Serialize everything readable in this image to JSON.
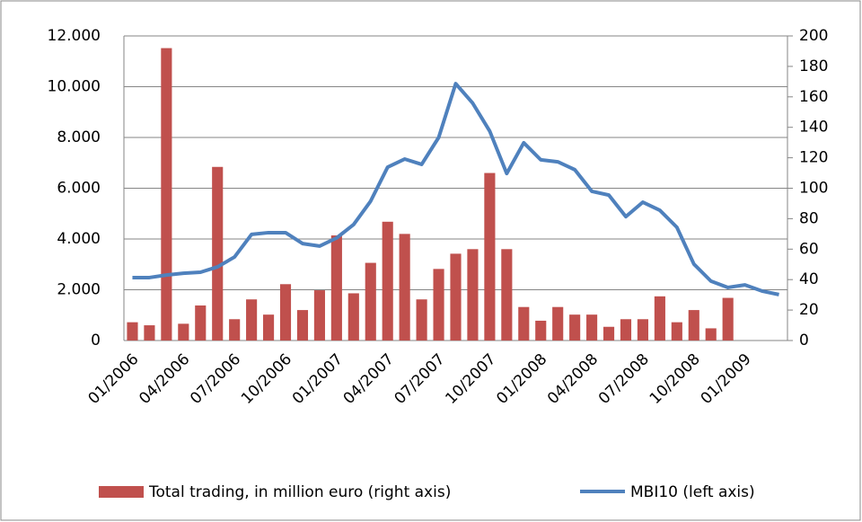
{
  "chart_data": {
    "type": "bar-line",
    "categories": [
      "01/2006",
      null,
      null,
      "04/2006",
      null,
      null,
      "07/2006",
      null,
      null,
      "10/2006",
      null,
      null,
      "01/2007",
      null,
      null,
      "04/2007",
      null,
      null,
      "07/2007",
      null,
      null,
      "10/2007",
      null,
      null,
      "01/2008",
      null,
      null,
      "04/2008",
      null,
      null,
      "07/2008",
      null,
      null,
      "10/2008",
      null,
      null,
      "01/2009",
      null,
      null
    ],
    "series": [
      {
        "name": "Total trading, in million euro (right axis)",
        "color": "#c0504d",
        "axis": "y2",
        "kind": "bar",
        "values": [
          12,
          10,
          192,
          11,
          23,
          114,
          14,
          27,
          17,
          37,
          20,
          33,
          69,
          31,
          51,
          78,
          70,
          27,
          47,
          57,
          60,
          110,
          60,
          22,
          13,
          22,
          17,
          17,
          9,
          14,
          14,
          29,
          12,
          20,
          8,
          28,
          null,
          null,
          null
        ]
      },
      {
        "name": "MBI10 (left axis)",
        "color": "#4f81bd",
        "axis": "y",
        "kind": "line",
        "values": [
          2480,
          2480,
          2580,
          2650,
          2690,
          2900,
          3290,
          4180,
          4250,
          4250,
          3820,
          3720,
          4040,
          4570,
          5490,
          6830,
          7150,
          6940,
          8000,
          10120,
          9350,
          8250,
          6580,
          7790,
          7120,
          7040,
          6730,
          5880,
          5730,
          4880,
          5450,
          5130,
          4460,
          3010,
          2340,
          2090,
          2190,
          1950,
          1810
        ]
      }
    ],
    "ylim": [
      0,
      12000
    ],
    "yticks": [
      0,
      {
        "value": 2000,
        "label": "2.000"
      },
      {
        "value": 4000,
        "label": "4.000"
      },
      {
        "value": 6000,
        "label": "6.000"
      },
      {
        "value": 8000,
        "label": "8.000"
      },
      {
        "value": 10000,
        "label": "10.000"
      },
      {
        "value": 12000,
        "label": "12.000"
      }
    ],
    "y2lim": [
      0,
      200
    ],
    "y2ticks": [
      0,
      20,
      40,
      60,
      80,
      100,
      120,
      140,
      160,
      180,
      200
    ],
    "grid": true,
    "legend": "bottom"
  }
}
